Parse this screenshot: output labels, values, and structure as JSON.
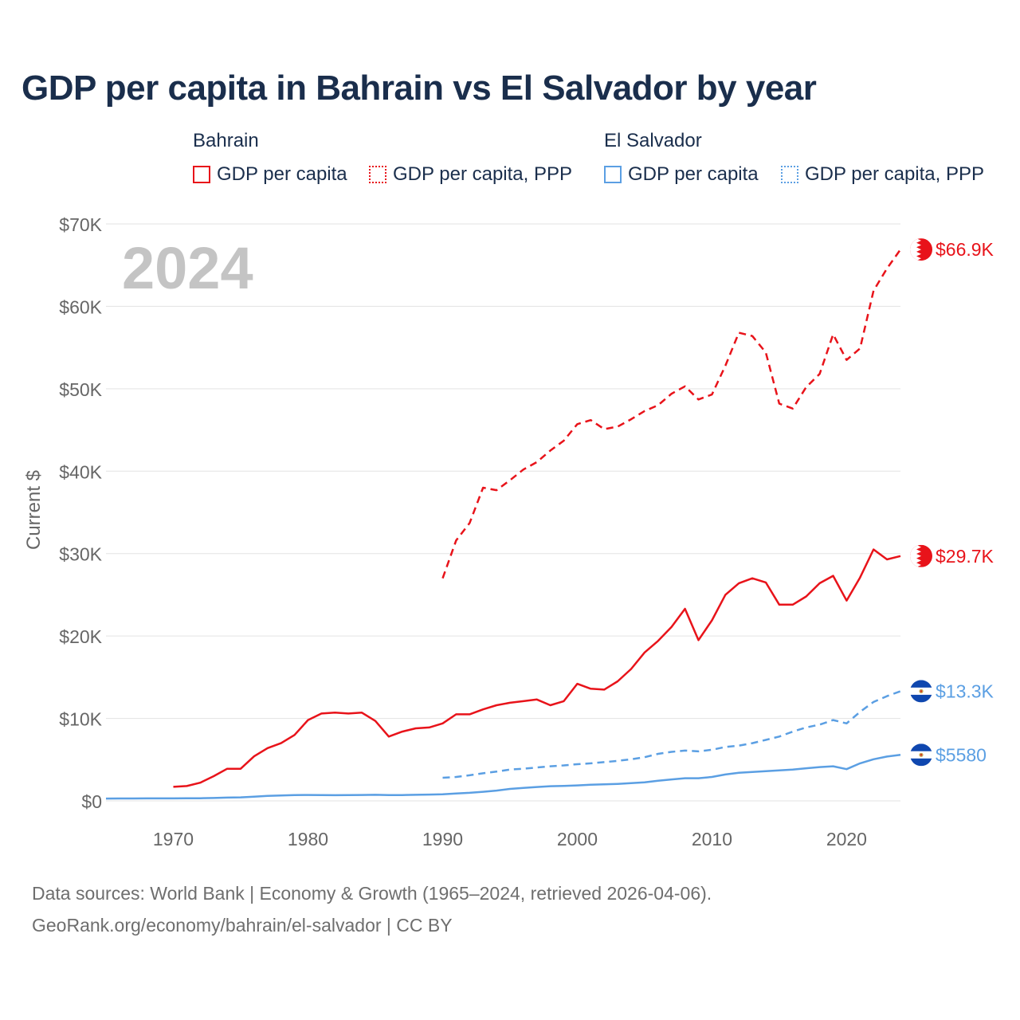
{
  "title": "GDP per capita in Bahrain vs El Salvador by year",
  "legend": {
    "bahrain": {
      "name": "Bahrain",
      "gdp": "GDP per capita",
      "ppp": "GDP per capita, PPP"
    },
    "el_salvador": {
      "name": "El Salvador",
      "gdp": "GDP per capita",
      "ppp": "GDP per capita, PPP"
    }
  },
  "colors": {
    "bahrain": "#e8131a",
    "el_salvador": "#5b9fe3",
    "grid": "#e3e3e3",
    "axis_text": "#666666",
    "year_watermark": "#c4c4c4"
  },
  "chart_data": {
    "type": "line",
    "year_label": "2024",
    "ylabel": "Current $",
    "xlim": [
      1965,
      2024
    ],
    "ylim": [
      0,
      70000
    ],
    "x_ticks": [
      "1970",
      "1980",
      "1990",
      "2000",
      "2010",
      "2020"
    ],
    "y_ticks": [
      "$0",
      "$10K",
      "$20K",
      "$30K",
      "$40K",
      "$50K",
      "$60K",
      "$70K"
    ],
    "series": [
      {
        "name": "Bahrain GDP per capita",
        "country": "bahrain",
        "style": "solid",
        "end_label": "$29.7K",
        "flag": "bahrain-flag-icon",
        "x": [
          1970,
          1971,
          1972,
          1973,
          1974,
          1975,
          1976,
          1977,
          1978,
          1979,
          1980,
          1981,
          1982,
          1983,
          1984,
          1985,
          1986,
          1987,
          1988,
          1989,
          1990,
          1991,
          1992,
          1993,
          1994,
          1995,
          1996,
          1997,
          1998,
          1999,
          2000,
          2001,
          2002,
          2003,
          2004,
          2005,
          2006,
          2007,
          2008,
          2009,
          2010,
          2011,
          2012,
          2013,
          2014,
          2015,
          2016,
          2017,
          2018,
          2019,
          2020,
          2021,
          2022,
          2023,
          2024
        ],
        "values": [
          1700,
          1800,
          2200,
          3000,
          3900,
          3900,
          5400,
          6400,
          7000,
          8000,
          9800,
          10600,
          10700,
          10600,
          10700,
          9700,
          7800,
          8400,
          8800,
          8900,
          9400,
          10500,
          10500,
          11100,
          11600,
          11900,
          12100,
          12300,
          11600,
          12100,
          14200,
          13600,
          13500,
          14500,
          16000,
          18000,
          19400,
          21100,
          23300,
          19500,
          21900,
          25000,
          26400,
          27000,
          26500,
          23800,
          23800,
          24800,
          26400,
          27300,
          24300,
          27100,
          30500,
          29300,
          29700
        ]
      },
      {
        "name": "Bahrain GDP per capita, PPP",
        "country": "bahrain",
        "style": "dashed",
        "end_label": "$66.9K",
        "flag": "bahrain-flag-icon",
        "x": [
          1990,
          1991,
          1992,
          1993,
          1994,
          1995,
          1996,
          1997,
          1998,
          1999,
          2000,
          2001,
          2002,
          2003,
          2004,
          2005,
          2006,
          2007,
          2008,
          2009,
          2010,
          2011,
          2012,
          2013,
          2014,
          2015,
          2016,
          2017,
          2018,
          2019,
          2020,
          2021,
          2022,
          2023,
          2024
        ],
        "values": [
          27000,
          31600,
          33700,
          38000,
          37700,
          38900,
          40200,
          41100,
          42500,
          43700,
          45700,
          46200,
          45100,
          45400,
          46300,
          47300,
          48000,
          49400,
          50300,
          48700,
          49300,
          52800,
          56800,
          56400,
          54400,
          48200,
          47600,
          50200,
          51800,
          56600,
          53500,
          54900,
          61900,
          64600,
          66900
        ]
      },
      {
        "name": "El Salvador GDP per capita",
        "country": "el_salvador",
        "style": "solid",
        "end_label": "$5580",
        "flag": "el-salvador-flag-icon",
        "x": [
          1965,
          1966,
          1967,
          1968,
          1969,
          1970,
          1971,
          1972,
          1973,
          1974,
          1975,
          1976,
          1977,
          1978,
          1979,
          1980,
          1981,
          1982,
          1983,
          1984,
          1985,
          1986,
          1987,
          1988,
          1989,
          1990,
          1991,
          1992,
          1993,
          1994,
          1995,
          1996,
          1997,
          1998,
          1999,
          2000,
          2001,
          2002,
          2003,
          2004,
          2005,
          2006,
          2007,
          2008,
          2009,
          2010,
          2011,
          2012,
          2013,
          2014,
          2015,
          2016,
          2017,
          2018,
          2019,
          2020,
          2021,
          2022,
          2023,
          2024
        ],
        "values": [
          280,
          290,
          290,
          300,
          300,
          300,
          310,
          320,
          350,
          400,
          430,
          500,
          600,
          650,
          700,
          720,
          700,
          690,
          700,
          720,
          730,
          700,
          710,
          730,
          760,
          800,
          900,
          980,
          1100,
          1250,
          1450,
          1570,
          1680,
          1780,
          1820,
          1880,
          1950,
          2000,
          2060,
          2150,
          2240,
          2450,
          2600,
          2750,
          2750,
          2900,
          3200,
          3400,
          3500,
          3600,
          3700,
          3800,
          3950,
          4100,
          4200,
          3850,
          4550,
          5050,
          5380,
          5580
        ]
      },
      {
        "name": "El Salvador GDP per capita, PPP",
        "country": "el_salvador",
        "style": "dashed",
        "end_label": "$13.3K",
        "flag": "el-salvador-flag-icon",
        "x": [
          1990,
          1991,
          1992,
          1993,
          1994,
          1995,
          1996,
          1997,
          1998,
          1999,
          2000,
          2001,
          2002,
          2003,
          2004,
          2005,
          2006,
          2007,
          2008,
          2009,
          2010,
          2011,
          2012,
          2013,
          2014,
          2015,
          2016,
          2017,
          2018,
          2019,
          2020,
          2021,
          2022,
          2023,
          2024
        ],
        "values": [
          2800,
          2900,
          3100,
          3350,
          3550,
          3800,
          3900,
          4050,
          4200,
          4300,
          4450,
          4550,
          4700,
          4850,
          5050,
          5300,
          5700,
          5950,
          6100,
          6000,
          6200,
          6550,
          6700,
          7000,
          7400,
          7800,
          8400,
          8900,
          9250,
          9800,
          9400,
          10800,
          12000,
          12700,
          13300
        ]
      }
    ]
  },
  "footer": {
    "line1": "Data sources: World Bank | Economy & Growth (1965–2024, retrieved 2026-04-06).",
    "line2": "GeoRank.org/economy/bahrain/el-salvador | CC BY"
  }
}
